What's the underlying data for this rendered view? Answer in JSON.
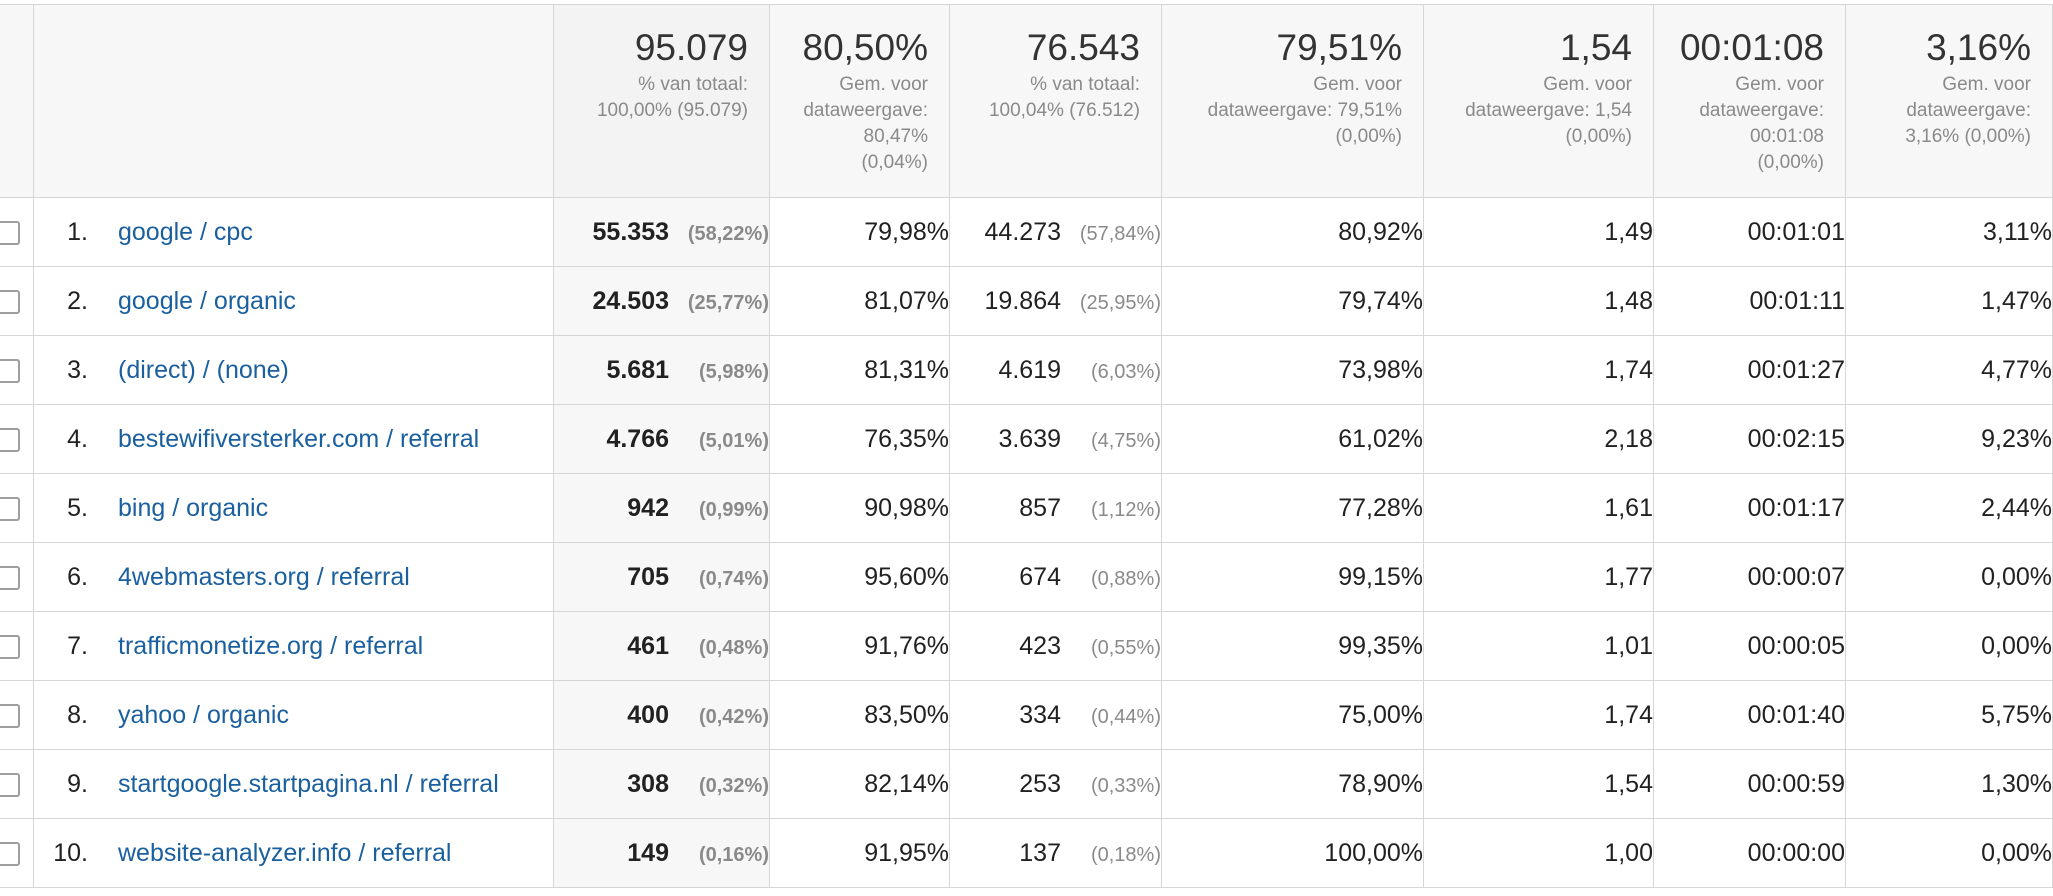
{
  "summary": {
    "sessions": {
      "value": "95.079",
      "sub": [
        "% van totaal:",
        "100,00% (95.079)"
      ]
    },
    "new_sessions_pct": {
      "value": "80,50%",
      "sub": [
        "Gem. voor",
        "dataweergave:",
        "80,47%",
        "(0,04%)"
      ]
    },
    "new_users": {
      "value": "76.543",
      "sub": [
        "% van totaal:",
        "100,04% (76.512)"
      ]
    },
    "bounce_rate": {
      "value": "79,51%",
      "sub": [
        "Gem. voor",
        "dataweergave: 79,51%",
        "(0,00%)"
      ]
    },
    "pages_per_session": {
      "value": "1,54",
      "sub": [
        "Gem. voor",
        "dataweergave: 1,54",
        "(0,00%)"
      ]
    },
    "avg_session_duration": {
      "value": "00:01:08",
      "sub": [
        "Gem. voor",
        "dataweergave:",
        "00:01:08",
        "(0,00%)"
      ]
    },
    "conversion_rate": {
      "value": "3,16%",
      "sub": [
        "Gem. voor",
        "dataweergave:",
        "3,16% (0,00%)"
      ]
    }
  },
  "rows": [
    {
      "rank": "1.",
      "source": "google / cpc",
      "sessions": "55.353",
      "sessions_pct": "(58,22%)",
      "new_sessions_pct": "79,98%",
      "new_users": "44.273",
      "new_users_pct": "(57,84%)",
      "bounce_rate": "80,92%",
      "pages_per_session": "1,49",
      "avg_duration": "00:01:01",
      "conversion_rate": "3,11%"
    },
    {
      "rank": "2.",
      "source": "google / organic",
      "sessions": "24.503",
      "sessions_pct": "(25,77%)",
      "new_sessions_pct": "81,07%",
      "new_users": "19.864",
      "new_users_pct": "(25,95%)",
      "bounce_rate": "79,74%",
      "pages_per_session": "1,48",
      "avg_duration": "00:01:11",
      "conversion_rate": "1,47%"
    },
    {
      "rank": "3.",
      "source": "(direct) / (none)",
      "sessions": "5.681",
      "sessions_pct": "(5,98%)",
      "new_sessions_pct": "81,31%",
      "new_users": "4.619",
      "new_users_pct": "(6,03%)",
      "bounce_rate": "73,98%",
      "pages_per_session": "1,74",
      "avg_duration": "00:01:27",
      "conversion_rate": "4,77%"
    },
    {
      "rank": "4.",
      "source": "bestewifiversterker.com / referral",
      "sessions": "4.766",
      "sessions_pct": "(5,01%)",
      "new_sessions_pct": "76,35%",
      "new_users": "3.639",
      "new_users_pct": "(4,75%)",
      "bounce_rate": "61,02%",
      "pages_per_session": "2,18",
      "avg_duration": "00:02:15",
      "conversion_rate": "9,23%"
    },
    {
      "rank": "5.",
      "source": "bing / organic",
      "sessions": "942",
      "sessions_pct": "(0,99%)",
      "new_sessions_pct": "90,98%",
      "new_users": "857",
      "new_users_pct": "(1,12%)",
      "bounce_rate": "77,28%",
      "pages_per_session": "1,61",
      "avg_duration": "00:01:17",
      "conversion_rate": "2,44%"
    },
    {
      "rank": "6.",
      "source": "4webmasters.org / referral",
      "sessions": "705",
      "sessions_pct": "(0,74%)",
      "new_sessions_pct": "95,60%",
      "new_users": "674",
      "new_users_pct": "(0,88%)",
      "bounce_rate": "99,15%",
      "pages_per_session": "1,77",
      "avg_duration": "00:00:07",
      "conversion_rate": "0,00%"
    },
    {
      "rank": "7.",
      "source": "trafficmonetize.org / referral",
      "sessions": "461",
      "sessions_pct": "(0,48%)",
      "new_sessions_pct": "91,76%",
      "new_users": "423",
      "new_users_pct": "(0,55%)",
      "bounce_rate": "99,35%",
      "pages_per_session": "1,01",
      "avg_duration": "00:00:05",
      "conversion_rate": "0,00%"
    },
    {
      "rank": "8.",
      "source": "yahoo / organic",
      "sessions": "400",
      "sessions_pct": "(0,42%)",
      "new_sessions_pct": "83,50%",
      "new_users": "334",
      "new_users_pct": "(0,44%)",
      "bounce_rate": "75,00%",
      "pages_per_session": "1,74",
      "avg_duration": "00:01:40",
      "conversion_rate": "5,75%"
    },
    {
      "rank": "9.",
      "source": "startgoogle.startpagina.nl / referral",
      "sessions": "308",
      "sessions_pct": "(0,32%)",
      "new_sessions_pct": "82,14%",
      "new_users": "253",
      "new_users_pct": "(0,33%)",
      "bounce_rate": "78,90%",
      "pages_per_session": "1,54",
      "avg_duration": "00:00:59",
      "conversion_rate": "1,30%"
    },
    {
      "rank": "10.",
      "source": "website-analyzer.info / referral",
      "sessions": "149",
      "sessions_pct": "(0,16%)",
      "new_sessions_pct": "91,95%",
      "new_users": "137",
      "new_users_pct": "(0,18%)",
      "bounce_rate": "100,00%",
      "pages_per_session": "1,00",
      "avg_duration": "00:00:00",
      "conversion_rate": "0,00%"
    }
  ]
}
